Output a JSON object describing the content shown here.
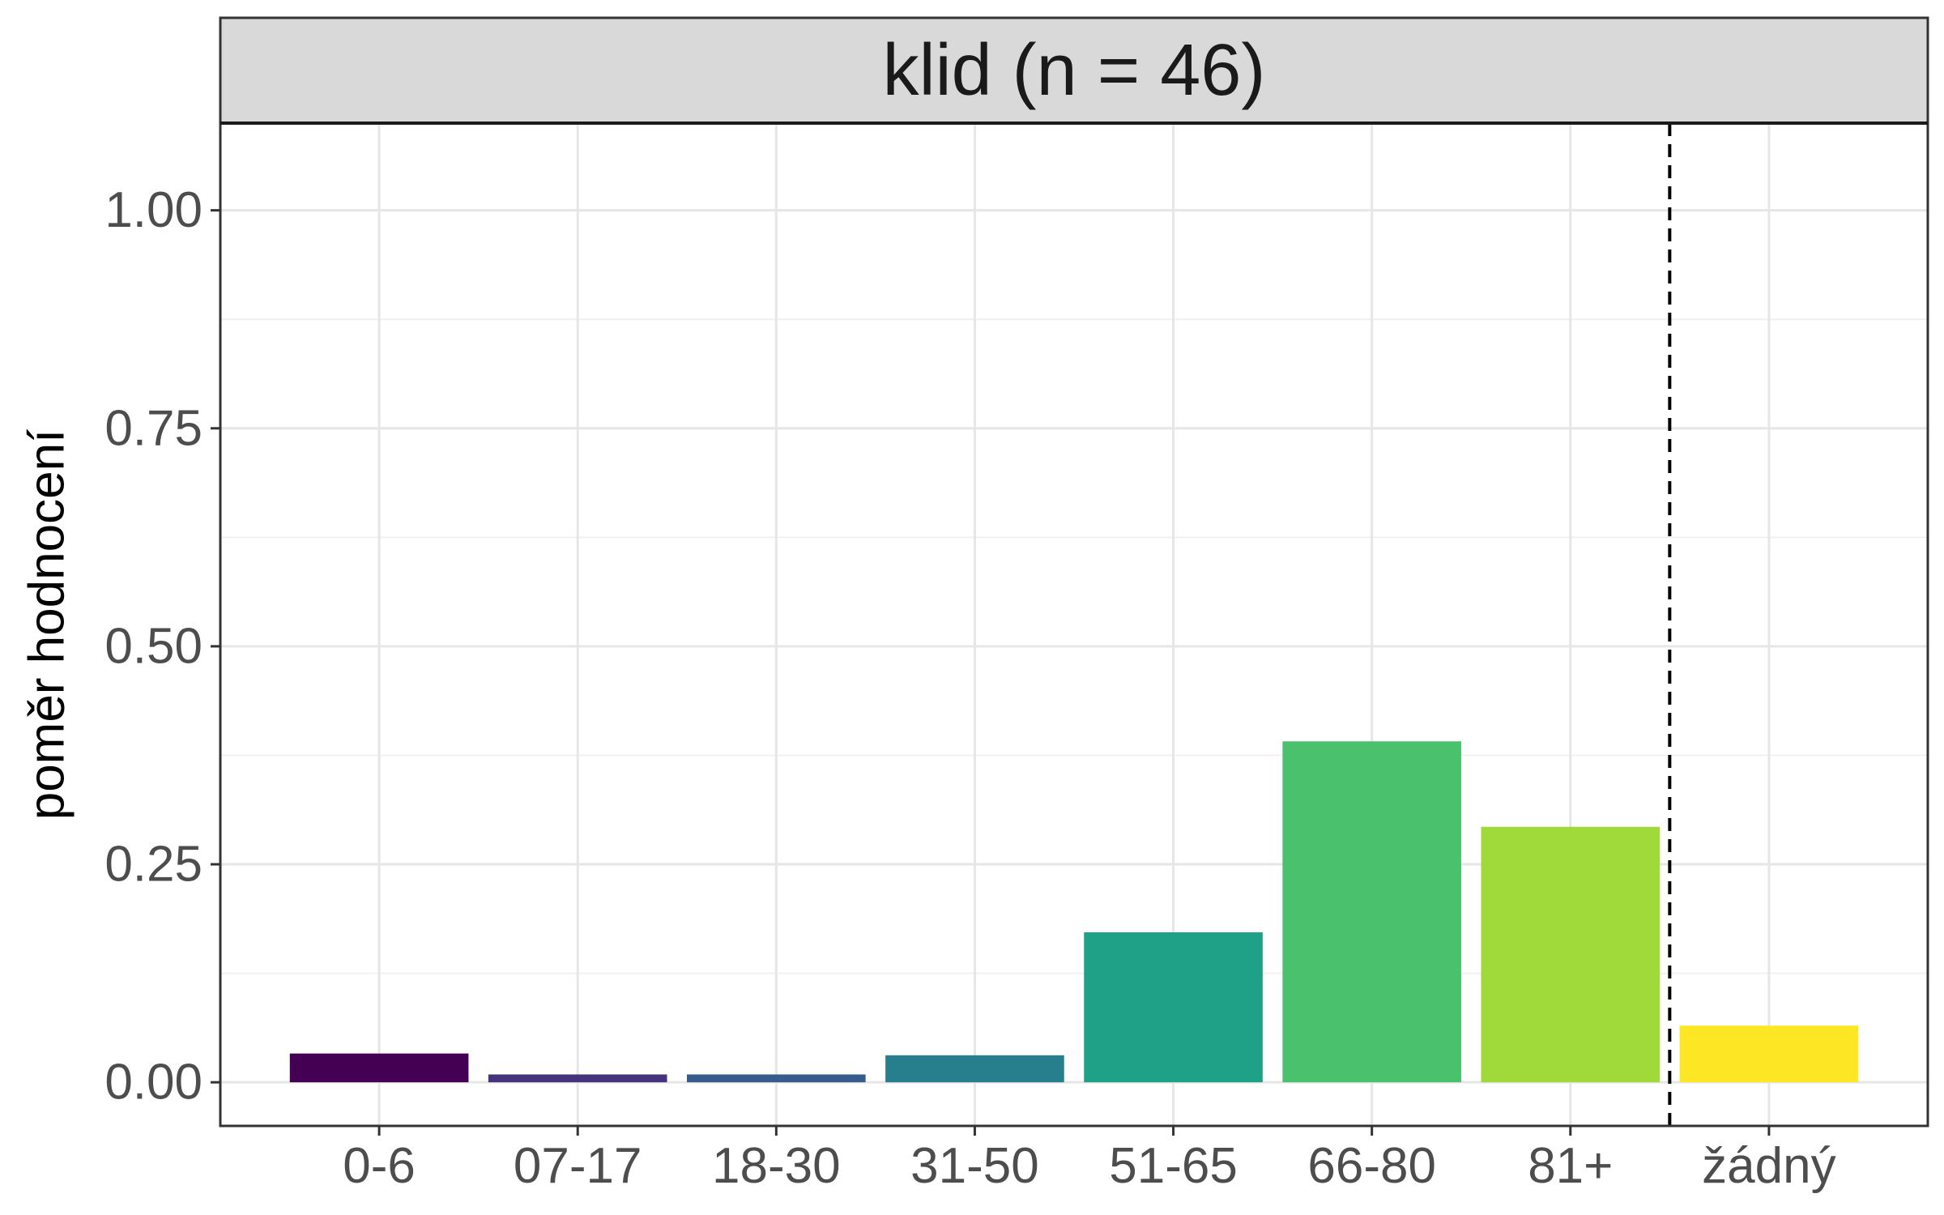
{
  "chart_data": {
    "type": "bar",
    "facet_title": "klid (n = 46)",
    "ylabel": "poměr hodnocení",
    "xlabel": "",
    "categories": [
      "0-6",
      "07-17",
      "18-30",
      "31-50",
      "51-65",
      "66-80",
      "81+",
      "žádný"
    ],
    "values": [
      0.033,
      0.009,
      0.009,
      0.031,
      0.172,
      0.391,
      0.293,
      0.065
    ],
    "colors": [
      "#440154",
      "#46337E",
      "#365C8D",
      "#277F8E",
      "#1FA187",
      "#4AC16D",
      "#9FDA3A",
      "#FDE725"
    ],
    "ylim": [
      -0.05,
      1.1
    ],
    "yticks": [
      0.0,
      0.25,
      0.5,
      0.75,
      1.0
    ],
    "ytick_labels": [
      "0.00",
      "0.25",
      "0.50",
      "0.75",
      "1.00"
    ],
    "separator_after_category": "81+",
    "separator_style": "dashed",
    "grid": true,
    "theme": "bw"
  }
}
